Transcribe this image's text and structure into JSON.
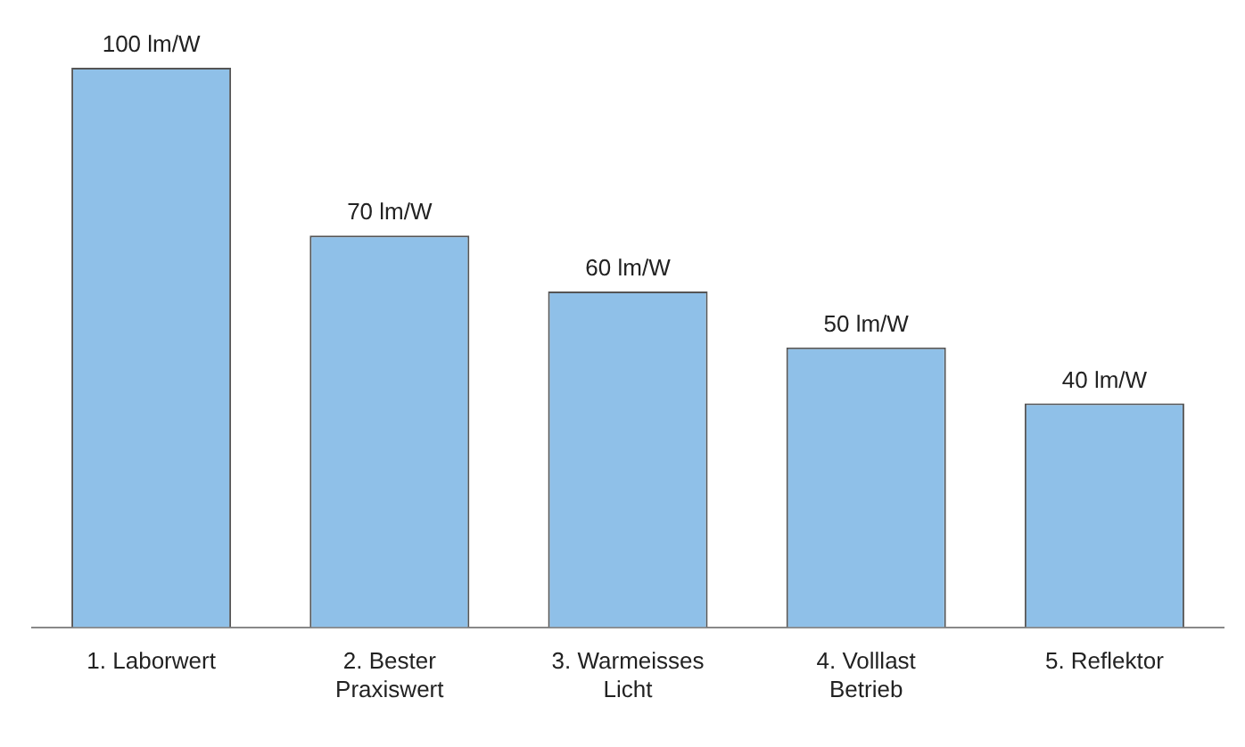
{
  "chart_data": {
    "type": "bar",
    "categories": [
      "1. Laborwert",
      "2. Bester Praxiswert",
      "3. Warmeisses Licht",
      "4. Volllast Betrieb",
      "5. Reflektor"
    ],
    "values": [
      100,
      70,
      60,
      50,
      40
    ],
    "value_labels": [
      "100 lm/W",
      "70 lm/W",
      "60 lm/W",
      "50 lm/W",
      "40 lm/W"
    ],
    "color": "#8fc0e8",
    "ylim": [
      0,
      100
    ],
    "grid": false,
    "legend": false
  }
}
